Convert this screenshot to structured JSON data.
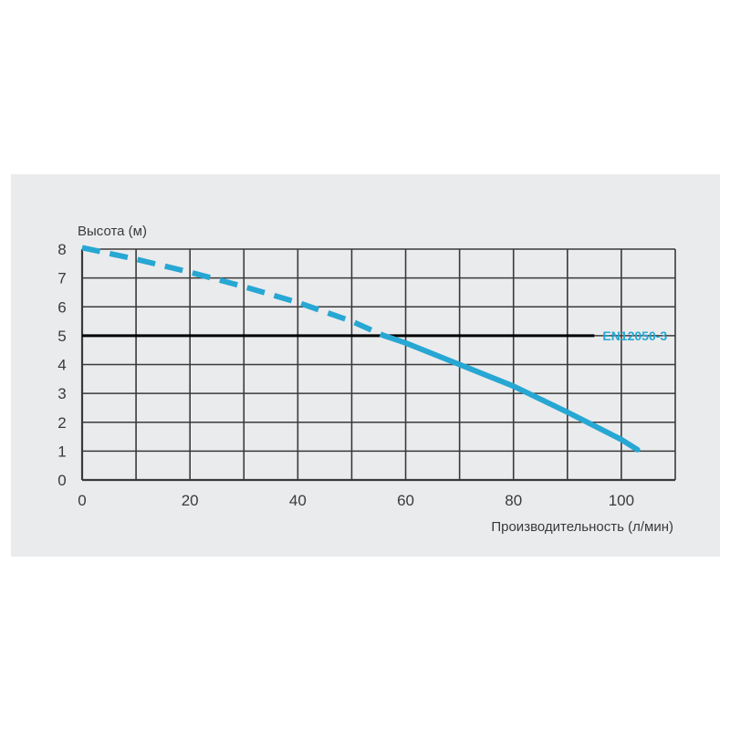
{
  "chart_data": {
    "type": "line",
    "title": "",
    "ylabel": "Высота (м)",
    "xlabel": "Производительность (л/мин)",
    "xlim": [
      0,
      110
    ],
    "ylim": [
      0,
      8
    ],
    "x_ticks": [
      0,
      20,
      40,
      60,
      80,
      100
    ],
    "y_ticks": [
      0,
      1,
      2,
      3,
      4,
      5,
      6,
      7,
      8
    ],
    "x_grid_step": 10,
    "y_grid_step": 1,
    "grid": true,
    "series": [
      {
        "style": "dashed",
        "color": "#27a7d3",
        "x": [
          0,
          10,
          20,
          30,
          40,
          50,
          56
        ],
        "y": [
          8.05,
          7.65,
          7.2,
          6.7,
          6.15,
          5.5,
          5.0
        ]
      },
      {
        "style": "solid",
        "color": "#27a7d3",
        "x": [
          56,
          60,
          70,
          80,
          90,
          100,
          103
        ],
        "y": [
          5.0,
          4.75,
          4.0,
          3.25,
          2.35,
          1.4,
          1.05
        ]
      }
    ],
    "reference_line": {
      "y": 5,
      "x_end": 95,
      "label": "EN12050-3",
      "color": "#000000",
      "label_color": "#27a7d3"
    },
    "axis_color": "#3a3a3a",
    "grid_color": "#3a3a3a",
    "background": "#eaebed"
  }
}
